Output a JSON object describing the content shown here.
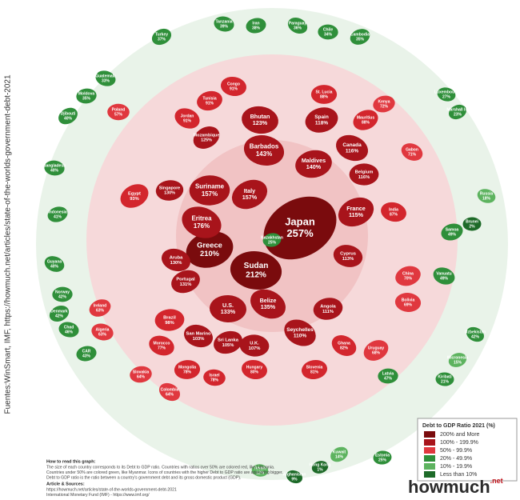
{
  "side_note": "Fuentes:WinSmart, IMF, https://howmuch.net/articles/state-of-the-worlds-government-debt-2021",
  "countries": [
    {
      "name": "Japan",
      "value": "257%",
      "color": "#7a0b0d"
    },
    {
      "name": "Sudan",
      "value": "212%",
      "color": "#7a0b0d"
    },
    {
      "name": "Greece",
      "value": "210%",
      "color": "#7a0b0d"
    },
    {
      "name": "Eritrea",
      "value": "176%",
      "color": "#a8141b"
    },
    {
      "name": "Suriname",
      "value": "157%",
      "color": "#a8141b"
    },
    {
      "name": "Italy",
      "value": "157%",
      "color": "#a8141b"
    },
    {
      "name": "Barbados",
      "value": "143%",
      "color": "#a8141b"
    },
    {
      "name": "Maldives",
      "value": "140%",
      "color": "#a8141b"
    },
    {
      "name": "Belize",
      "value": "135%",
      "color": "#a8141b"
    },
    {
      "name": "U.S.",
      "value": "133%",
      "color": "#a8141b"
    },
    {
      "name": "Portugal",
      "value": "131%",
      "color": "#a8141b"
    },
    {
      "name": "Aruba",
      "value": "130%",
      "color": "#a8141b"
    },
    {
      "name": "Singapore",
      "value": "130%",
      "color": "#a8141b"
    },
    {
      "name": "Mozambique",
      "value": "125%",
      "color": "#a8141b"
    },
    {
      "name": "Bhutan",
      "value": "123%",
      "color": "#a8141b"
    },
    {
      "name": "Spain",
      "value": "118%",
      "color": "#a8141b"
    },
    {
      "name": "Canada",
      "value": "116%",
      "color": "#a8141b"
    },
    {
      "name": "Belgium",
      "value": "116%",
      "color": "#a8141b"
    },
    {
      "name": "France",
      "value": "115%",
      "color": "#a8141b"
    },
    {
      "name": "Cyprus",
      "value": "113%",
      "color": "#a8141b"
    },
    {
      "name": "Angola",
      "value": "111%",
      "color": "#a8141b"
    },
    {
      "name": "Seychelles",
      "value": "110%",
      "color": "#a8141b"
    },
    {
      "name": "U.K.",
      "value": "107%",
      "color": "#a8141b"
    },
    {
      "name": "Sri Lanka",
      "value": "105%",
      "color": "#a8141b"
    },
    {
      "name": "San Marino",
      "value": "103%",
      "color": "#a8141b"
    },
    {
      "name": "Brazil",
      "value": "98%",
      "color": "#d3262d"
    },
    {
      "name": "Egypt",
      "value": "93%",
      "color": "#d3262d"
    },
    {
      "name": "Congo",
      "value": "91%",
      "color": "#d3262d"
    },
    {
      "name": "Tunisia",
      "value": "91%",
      "color": "#d3262d"
    },
    {
      "name": "Jordan",
      "value": "91%",
      "color": "#d3262d"
    },
    {
      "name": "St. Lucia",
      "value": "88%",
      "color": "#d3262d"
    },
    {
      "name": "Mauritius",
      "value": "88%",
      "color": "#d3262d"
    },
    {
      "name": "India",
      "value": "87%",
      "color": "#d3262d"
    },
    {
      "name": "Slovenia",
      "value": "81%",
      "color": "#d3262d"
    },
    {
      "name": "Ghana",
      "value": "82%",
      "color": "#d3262d"
    },
    {
      "name": "Bolivia",
      "value": "69%",
      "color": "#e0383f"
    },
    {
      "name": "China",
      "value": "70%",
      "color": "#e0383f"
    },
    {
      "name": "Morocco",
      "value": "77%",
      "color": "#d3262d"
    },
    {
      "name": "Mongolia",
      "value": "78%",
      "color": "#d3262d"
    },
    {
      "name": "Uruguay",
      "value": "68%",
      "color": "#e0383f"
    },
    {
      "name": "Hungary",
      "value": "80%",
      "color": "#d3262d"
    },
    {
      "name": "Kenya",
      "value": "72%",
      "color": "#e0383f"
    },
    {
      "name": "Gabon",
      "value": "71%",
      "color": "#e0383f"
    },
    {
      "name": "Poland",
      "value": "57%",
      "color": "#e0383f"
    },
    {
      "name": "Ireland",
      "value": "63%",
      "color": "#e0383f"
    },
    {
      "name": "Algeria",
      "value": "63%",
      "color": "#e0383f"
    },
    {
      "name": "Slovakia",
      "value": "64%",
      "color": "#e0383f"
    },
    {
      "name": "Colombia",
      "value": "64%",
      "color": "#e0383f"
    },
    {
      "name": "Israel",
      "value": "78%",
      "color": "#d3262d"
    },
    {
      "name": "Samoa",
      "value": "49%",
      "color": "#2f8f3a"
    },
    {
      "name": "Vanuatu",
      "value": "49%",
      "color": "#2f8f3a"
    },
    {
      "name": "Latvia",
      "value": "47%",
      "color": "#2f8f3a"
    },
    {
      "name": "Turkey",
      "value": "37%",
      "color": "#2f8f3a"
    },
    {
      "name": "Tanzania",
      "value": "39%",
      "color": "#2f8f3a"
    },
    {
      "name": "Iran",
      "value": "38%",
      "color": "#2f8f3a"
    },
    {
      "name": "Paraguay",
      "value": "36%",
      "color": "#2f8f3a"
    },
    {
      "name": "Chile",
      "value": "34%",
      "color": "#2f8f3a"
    },
    {
      "name": "Cambodia",
      "value": "35%",
      "color": "#2f8f3a"
    },
    {
      "name": "Guatemala",
      "value": "33%",
      "color": "#2f8f3a"
    },
    {
      "name": "Moldova",
      "value": "35%",
      "color": "#2f8f3a"
    },
    {
      "name": "Djibouti",
      "value": "40%",
      "color": "#2f8f3a"
    },
    {
      "name": "Bangladesh",
      "value": "40%",
      "color": "#2f8f3a"
    },
    {
      "name": "Indonesia",
      "value": "41%",
      "color": "#2f8f3a"
    },
    {
      "name": "Guyana",
      "value": "40%",
      "color": "#2f8f3a"
    },
    {
      "name": "Norway",
      "value": "42%",
      "color": "#2f8f3a"
    },
    {
      "name": "Denmark",
      "value": "42%",
      "color": "#2f8f3a"
    },
    {
      "name": "Chad",
      "value": "46%",
      "color": "#2f8f3a"
    },
    {
      "name": "CAR",
      "value": "43%",
      "color": "#2f8f3a"
    },
    {
      "name": "Uzbekistan",
      "value": "42%",
      "color": "#2f8f3a"
    },
    {
      "name": "Kiribati",
      "value": "21%",
      "color": "#2f8f3a"
    },
    {
      "name": "Micronesia",
      "value": "15%",
      "color": "#5db35f"
    },
    {
      "name": "Russia",
      "value": "18%",
      "color": "#5db35f"
    },
    {
      "name": "Estonia",
      "value": "25%",
      "color": "#2f8f3a"
    },
    {
      "name": "Kuwait",
      "value": "14%",
      "color": "#5db35f"
    },
    {
      "name": "Tuvalu",
      "value": "12%",
      "color": "#5db35f"
    },
    {
      "name": "Hong Kong",
      "value": "1%",
      "color": "#1d6a28"
    },
    {
      "name": "Afghanistan",
      "value": "9%",
      "color": "#1d6a28"
    },
    {
      "name": "Brunei",
      "value": "2%",
      "color": "#1d6a28"
    },
    {
      "name": "Marshall Is.",
      "value": "23%",
      "color": "#2f8f3a"
    },
    {
      "name": "Luxembourg",
      "value": "27%",
      "color": "#2f8f3a"
    },
    {
      "name": "Kazakhstan",
      "value": "25%",
      "color": "#2f8f3a"
    }
  ],
  "legend": {
    "title": "Debt to GDP Ratio 2021 (%)",
    "items": [
      {
        "label": "200% and More",
        "color": "#7a0b0d"
      },
      {
        "label": "100% - 199.9%",
        "color": "#a8141b"
      },
      {
        "label": "50% - 99.9%",
        "color": "#e0383f"
      },
      {
        "label": "20% - 49.9%",
        "color": "#2f8f3a"
      },
      {
        "label": "10% - 19.9%",
        "color": "#5db35f"
      },
      {
        "label": "Less than 10%",
        "color": "#1d6a28"
      }
    ]
  },
  "footer": {
    "how_to_title": "How to read this graph:",
    "how_to_lines": [
      "The size of each country corresponds to its Debt to GDP ratio. Countries with ratios over 50% are colored red, like Lithuania.",
      "Countries under 50% are colored green, like Myanmar. Icons of countries with the higher Debt to GDP ratio are appearing bigger.",
      "Debt to GDP ratio is the ratio between a country's government debt and its gross domestic product (GDP)."
    ],
    "sources_title": "Article & Sources:",
    "sources": [
      "https://howmuch.net/articles/state-of-the-worlds-government-debt-2021",
      "International Monetary Fund (IMF) - https://www.imf.org/"
    ]
  },
  "logo": {
    "main": "howmuch",
    "suffix": ".net"
  }
}
